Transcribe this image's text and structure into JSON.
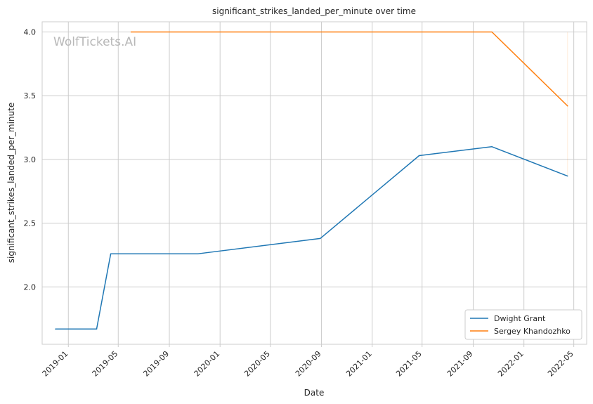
{
  "chart_data": {
    "type": "line",
    "title": "significant_strikes_landed_per_minute over time",
    "xlabel": "Date",
    "ylabel": "significant_strikes_landed_per_minute",
    "watermark": "WolfTickets.AI",
    "x_ticks": [
      "2019-01",
      "2019-05",
      "2019-09",
      "2020-01",
      "2020-05",
      "2020-09",
      "2021-01",
      "2021-05",
      "2021-09",
      "2022-01",
      "2022-05"
    ],
    "y_ticks": [
      "2.0",
      "2.5",
      "3.0",
      "3.5",
      "4.0"
    ],
    "ylim": [
      1.55,
      4.08
    ],
    "xlim": [
      "2018-10-30",
      "2022-06-01"
    ],
    "grid": true,
    "legend_position": "lower-right",
    "series": [
      {
        "name": "Dwight Grant",
        "color": "#1f77b4",
        "x": [
          "2018-12-01",
          "2019-03-10",
          "2019-04-13",
          "2019-11-09",
          "2020-08-29",
          "2021-04-24",
          "2021-10-16",
          "2022-04-16"
        ],
        "values": [
          1.67,
          1.67,
          2.26,
          2.26,
          2.38,
          3.03,
          3.1,
          2.87
        ]
      },
      {
        "name": "Sergey Khandozhko",
        "color": "#ff7f0e",
        "x": [
          "2019-06-01",
          "2021-10-16",
          "2022-04-16"
        ],
        "values": [
          4.0,
          4.0,
          3.42
        ]
      }
    ]
  }
}
